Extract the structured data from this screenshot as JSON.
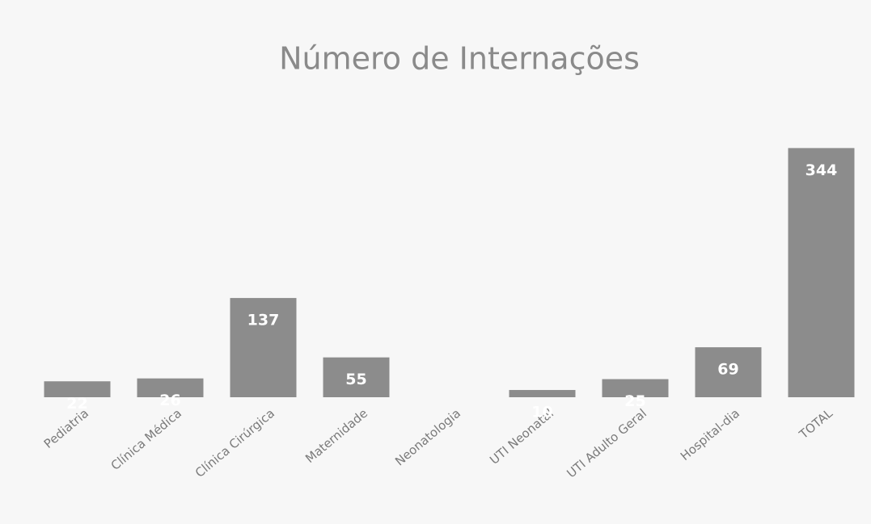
{
  "chart_data": {
    "type": "bar",
    "title": "Número de Internações",
    "categories": [
      "Pediatria",
      "Clínica Médica",
      "Clínica Cirúrgica",
      "Maternidade",
      "Neonatologia",
      "UTI Neonatal",
      "UTI Adulto Geral",
      "Hospital-dia",
      "TOTAL"
    ],
    "values": [
      22,
      26,
      137,
      55,
      0,
      10,
      25,
      69,
      344
    ],
    "color": "#8c8c8c",
    "ylim": [
      0,
      350
    ]
  }
}
